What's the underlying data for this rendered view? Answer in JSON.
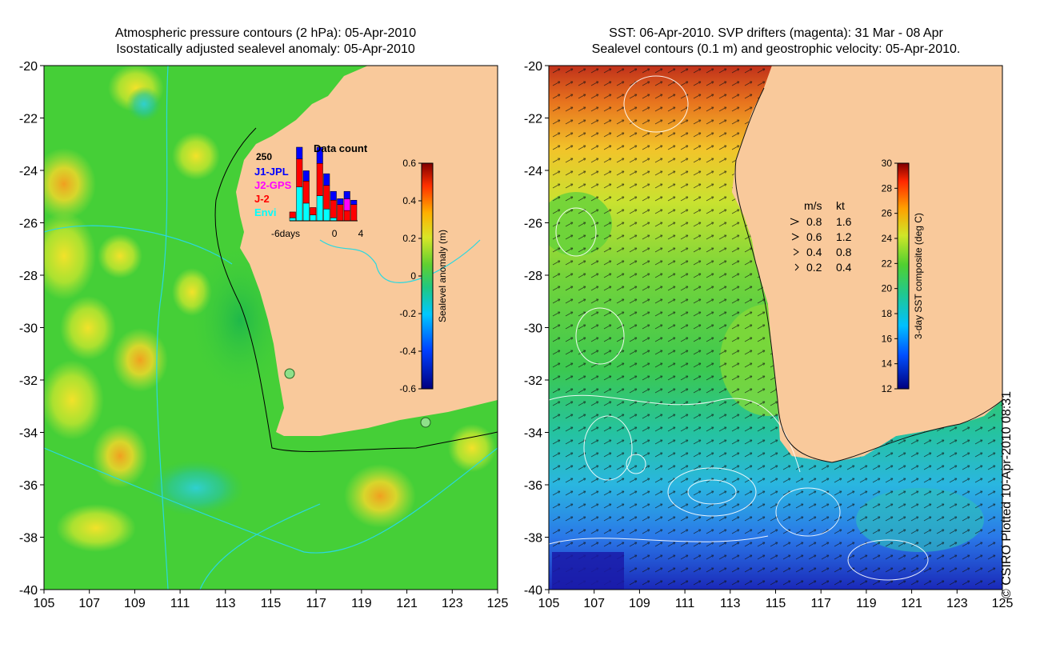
{
  "left_panel": {
    "title_line1": "Atmospheric pressure contours (2 hPa): 05-Apr-2010",
    "title_line2": "Isostatically adjusted sealevel anomaly: 05-Apr-2010"
  },
  "right_panel": {
    "title_line1": "SST: 06-Apr-2010. SVP drifters (magenta): 31 Mar - 08 Apr",
    "title_line2": "Sealevel contours (0.1 m) and geostrophic velocity: 05-Apr-2010."
  },
  "credit": "© CSIRO Plotted 10-Apr-2010 08:31",
  "colors": {
    "land": "#f9c99b",
    "ocean_green": "#3fce3a",
    "colorbar_low": "#00007f",
    "colorbar_high": "#7f0000"
  },
  "chart_data": [
    {
      "type": "heatmap",
      "title": "Isostatically adjusted sealevel anomaly: 05-Apr-2010",
      "x_ticks": [
        "105",
        "107",
        "109",
        "111",
        "113",
        "115",
        "117",
        "119",
        "121",
        "123",
        "125"
      ],
      "y_ticks": [
        "-20",
        "-22",
        "-24",
        "-26",
        "-28",
        "-30",
        "-32",
        "-34",
        "-36",
        "-38",
        "-40"
      ],
      "xlim": [
        105,
        125
      ],
      "ylim": [
        -40,
        -20
      ],
      "colorbar": {
        "label": "Sealevel anomaly (m)",
        "range": [
          -0.6,
          0.6
        ],
        "ticks": [
          "0.6",
          "0.4",
          "0.2",
          "0",
          "-0.2",
          "-0.4",
          "-0.6"
        ]
      },
      "inset": {
        "title": "Data count",
        "max_label": "250",
        "legend": [
          {
            "name": "J1-JPL",
            "color": "#0000ff"
          },
          {
            "name": "J2-GPS",
            "color": "#ff00ff"
          },
          {
            "name": "J-2",
            "color": "#ff0000"
          },
          {
            "name": "Envi",
            "color": "#00ffff"
          }
        ],
        "x_ticks": [
          "-6days",
          "0",
          "4"
        ],
        "bars": [
          {
            "J1-JPL": 0,
            "J2-GPS": 0,
            "J-2": 20,
            "Envi": 10
          },
          {
            "J1-JPL": 40,
            "J2-GPS": 0,
            "J-2": 95,
            "Envi": 115
          },
          {
            "J1-JPL": 35,
            "J2-GPS": 0,
            "J-2": 75,
            "Envi": 60
          },
          {
            "J1-JPL": 0,
            "J2-GPS": 0,
            "J-2": 25,
            "Envi": 20
          },
          {
            "J1-JPL": 55,
            "J2-GPS": 0,
            "J-2": 110,
            "Envi": 85
          },
          {
            "J1-JPL": 40,
            "J2-GPS": 0,
            "J-2": 80,
            "Envi": 40
          },
          {
            "J1-JPL": 30,
            "J2-GPS": 0,
            "J-2": 60,
            "Envi": 10
          },
          {
            "J1-JPL": 20,
            "J2-GPS": 0,
            "J-2": 55,
            "Envi": 0
          },
          {
            "J1-JPL": 25,
            "J2-GPS": 40,
            "J-2": 35,
            "Envi": 0
          },
          {
            "J1-JPL": 15,
            "J2-GPS": 0,
            "J-2": 55,
            "Envi": 0
          }
        ]
      }
    },
    {
      "type": "heatmap",
      "title": "SST: 06-Apr-2010. SVP drifters (magenta): 31 Mar - 08 Apr",
      "x_ticks": [
        "105",
        "107",
        "109",
        "111",
        "113",
        "115",
        "117",
        "119",
        "121",
        "123",
        "125"
      ],
      "y_ticks": [
        "-20",
        "-22",
        "-24",
        "-26",
        "-28",
        "-30",
        "-32",
        "-34",
        "-36",
        "-38",
        "-40"
      ],
      "xlim": [
        105,
        125
      ],
      "ylim": [
        -40,
        -20
      ],
      "colorbar": {
        "label": "3-day SST composite (deg C)",
        "range": [
          12,
          30
        ],
        "ticks": [
          "30",
          "28",
          "26",
          "24",
          "22",
          "20",
          "18",
          "16",
          "14",
          "12"
        ]
      },
      "velocity_legend": {
        "header_ms": "m/s",
        "header_kt": "kt",
        "rows": [
          {
            "ms": "0.8",
            "kt": "1.6"
          },
          {
            "ms": "0.6",
            "kt": "1.2"
          },
          {
            "ms": "0.4",
            "kt": "0.8"
          },
          {
            "ms": "0.2",
            "kt": "0.4"
          }
        ]
      }
    }
  ]
}
